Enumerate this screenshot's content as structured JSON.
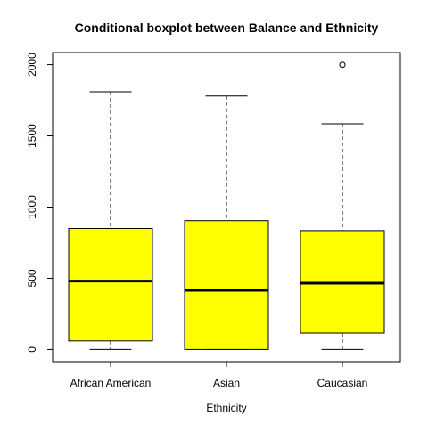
{
  "chart_data": {
    "type": "boxplot",
    "title": "Conditional boxplot between Balance and Ethnicity",
    "xlabel": "Ethnicity",
    "ylabel": "",
    "categories": [
      "African American",
      "Asian",
      "Caucasian"
    ],
    "ylim": [
      -85,
      2085
    ],
    "yticks": [
      0,
      500,
      1000,
      1500,
      2000
    ],
    "ytick_labels": [
      "0",
      "500",
      "1000",
      "1500",
      "2000"
    ],
    "box_color": "#ffff00",
    "boxes": [
      {
        "category": "African American",
        "whisker_low": 0,
        "q1": 60,
        "median": 480,
        "q3": 850,
        "whisker_high": 1810,
        "outliers": []
      },
      {
        "category": "Asian",
        "whisker_low": 0,
        "q1": 0,
        "median": 415,
        "q3": 905,
        "whisker_high": 1780,
        "outliers": []
      },
      {
        "category": "Caucasian",
        "whisker_low": 0,
        "q1": 115,
        "median": 465,
        "q3": 835,
        "whisker_high": 1585,
        "outliers": [
          1999
        ]
      }
    ],
    "grid": false,
    "legend": "none"
  }
}
